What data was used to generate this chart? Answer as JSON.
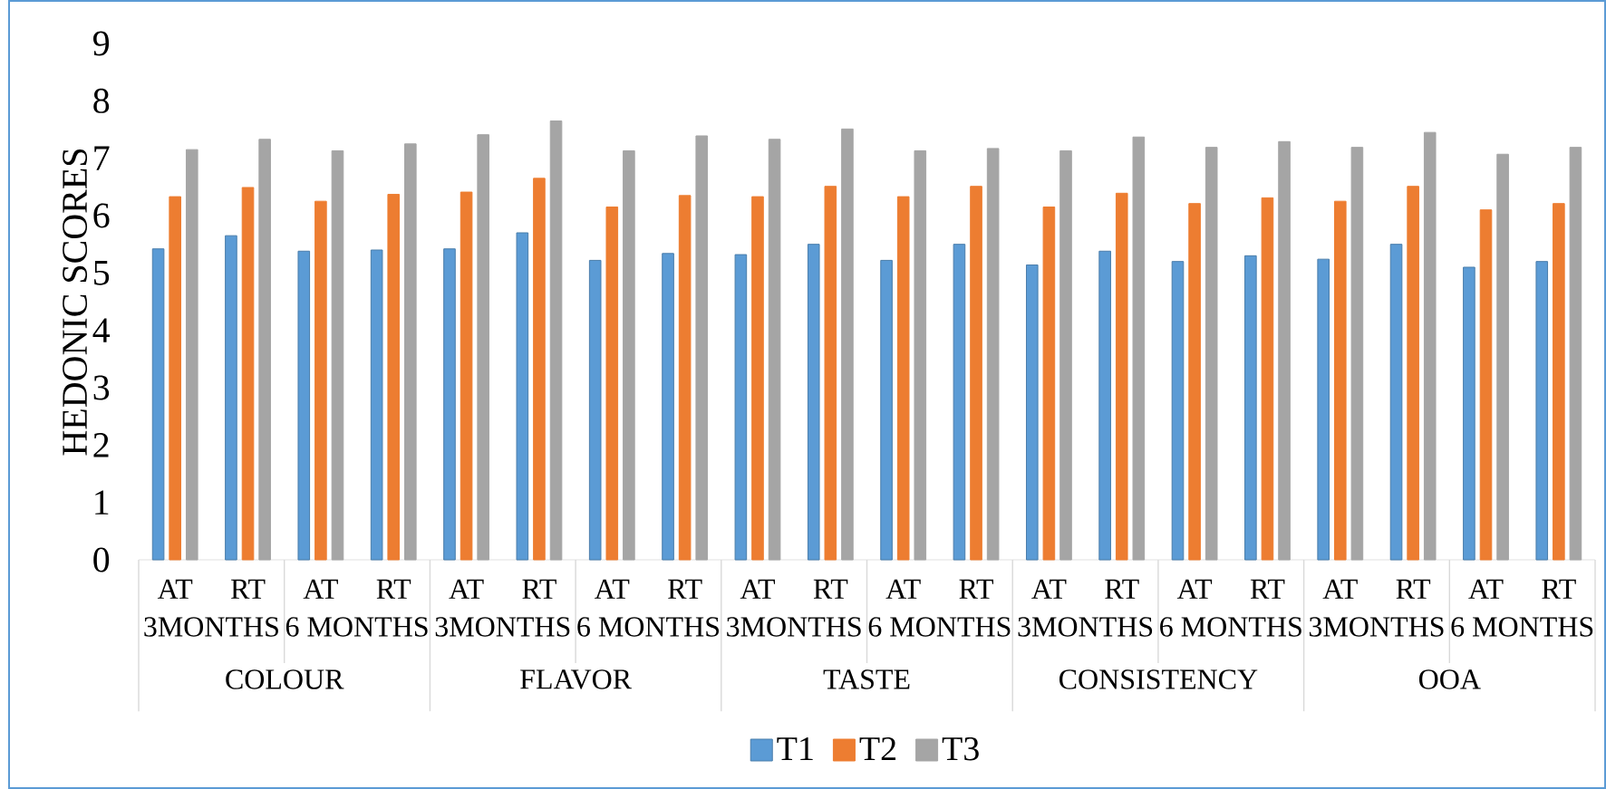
{
  "chart_data": {
    "type": "bar",
    "ylabel": "HEDONIC SCORES",
    "categories": [
      "AT",
      "RT",
      "AT",
      "RT",
      "AT",
      "RT",
      "AT",
      "RT",
      "AT",
      "RT",
      "AT",
      "RT",
      "AT",
      "RT",
      "AT",
      "RT",
      "AT",
      "RT",
      "AT",
      "RT"
    ],
    "annotations": [
      "3MONTHS",
      "6 MONTHS",
      "3MONTHS",
      "6 MONTHS",
      "3MONTHS",
      "6 MONTHS",
      "3MONTHS",
      "6 MONTHS",
      "3MONTHS",
      "6 MONTHS",
      "COLOUR",
      "FLAVOR",
      "TASTE",
      "CONSISTENCY",
      "OOA"
    ],
    "series": [
      {
        "name": "T1",
        "color": "#5b9bd5",
        "values": [
          5.42,
          5.65,
          5.38,
          5.4,
          5.42,
          5.7,
          5.22,
          5.34,
          5.32,
          5.5,
          5.22,
          5.5,
          5.14,
          5.38,
          5.2,
          5.3,
          5.24,
          5.5,
          5.1,
          5.2
        ]
      },
      {
        "name": "T2",
        "color": "#ed7d31",
        "values": [
          6.33,
          6.49,
          6.25,
          6.37,
          6.41,
          6.65,
          6.15,
          6.35,
          6.33,
          6.51,
          6.33,
          6.51,
          6.15,
          6.39,
          6.21,
          6.31,
          6.25,
          6.51,
          6.1,
          6.21
        ]
      },
      {
        "name": "T3",
        "color": "#a5a5a5",
        "values": [
          7.15,
          7.33,
          7.13,
          7.25,
          7.41,
          7.65,
          7.13,
          7.39,
          7.33,
          7.51,
          7.13,
          7.17,
          7.13,
          7.37,
          7.19,
          7.29,
          7.19,
          7.45,
          7.07,
          7.19
        ]
      }
    ],
    "ylim": [
      0,
      9
    ],
    "yticks": [
      0,
      1,
      2,
      3,
      4,
      5,
      6,
      7,
      8,
      9
    ],
    "grid": false,
    "legend": "bottom"
  }
}
